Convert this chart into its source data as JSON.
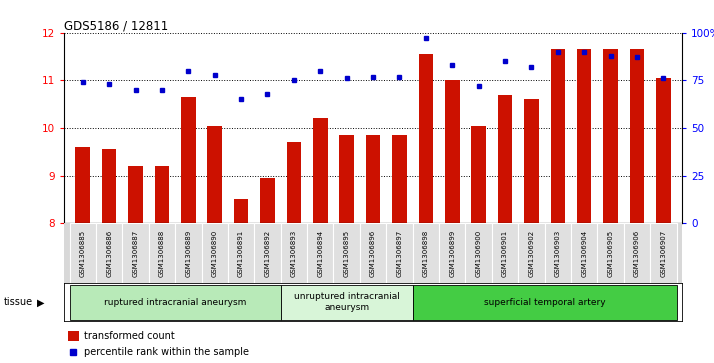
{
  "title": "GDS5186 / 12811",
  "samples": [
    "GSM1306885",
    "GSM1306886",
    "GSM1306887",
    "GSM1306888",
    "GSM1306889",
    "GSM1306890",
    "GSM1306891",
    "GSM1306892",
    "GSM1306893",
    "GSM1306894",
    "GSM1306895",
    "GSM1306896",
    "GSM1306897",
    "GSM1306898",
    "GSM1306899",
    "GSM1306900",
    "GSM1306901",
    "GSM1306902",
    "GSM1306903",
    "GSM1306904",
    "GSM1306905",
    "GSM1306906",
    "GSM1306907"
  ],
  "transformed_count": [
    9.6,
    9.55,
    9.2,
    9.2,
    10.65,
    10.05,
    8.5,
    8.95,
    9.7,
    10.2,
    9.85,
    9.85,
    9.85,
    11.55,
    11.0,
    10.05,
    10.7,
    10.6,
    11.65,
    11.65,
    11.65,
    11.65,
    11.05
  ],
  "percentile_rank": [
    74,
    73,
    70,
    70,
    80,
    78,
    65,
    68,
    75,
    80,
    76,
    77,
    77,
    97,
    83,
    72,
    85,
    82,
    90,
    90,
    88,
    87,
    76
  ],
  "groups": [
    {
      "label": "ruptured intracranial aneurysm",
      "start": 0,
      "end": 8
    },
    {
      "label": "unruptured intracranial\naneurysm",
      "start": 8,
      "end": 13
    },
    {
      "label": "superficial temporal artery",
      "start": 13,
      "end": 23
    }
  ],
  "group_colors": [
    "#b8eab8",
    "#d8f5d8",
    "#44cc44"
  ],
  "bar_color": "#cc1100",
  "dot_color": "#0000cc",
  "ylim_left": [
    8,
    12
  ],
  "ylim_right": [
    0,
    100
  ],
  "yticks_left": [
    8,
    9,
    10,
    11,
    12
  ],
  "yticks_right": [
    0,
    25,
    50,
    75,
    100
  ],
  "ytick_labels_right": [
    "0",
    "25",
    "50",
    "75",
    "100%"
  ],
  "background_color": "#ffffff",
  "tissue_label": "tissue",
  "legend_bar_label": "transformed count",
  "legend_dot_label": "percentile rank within the sample"
}
